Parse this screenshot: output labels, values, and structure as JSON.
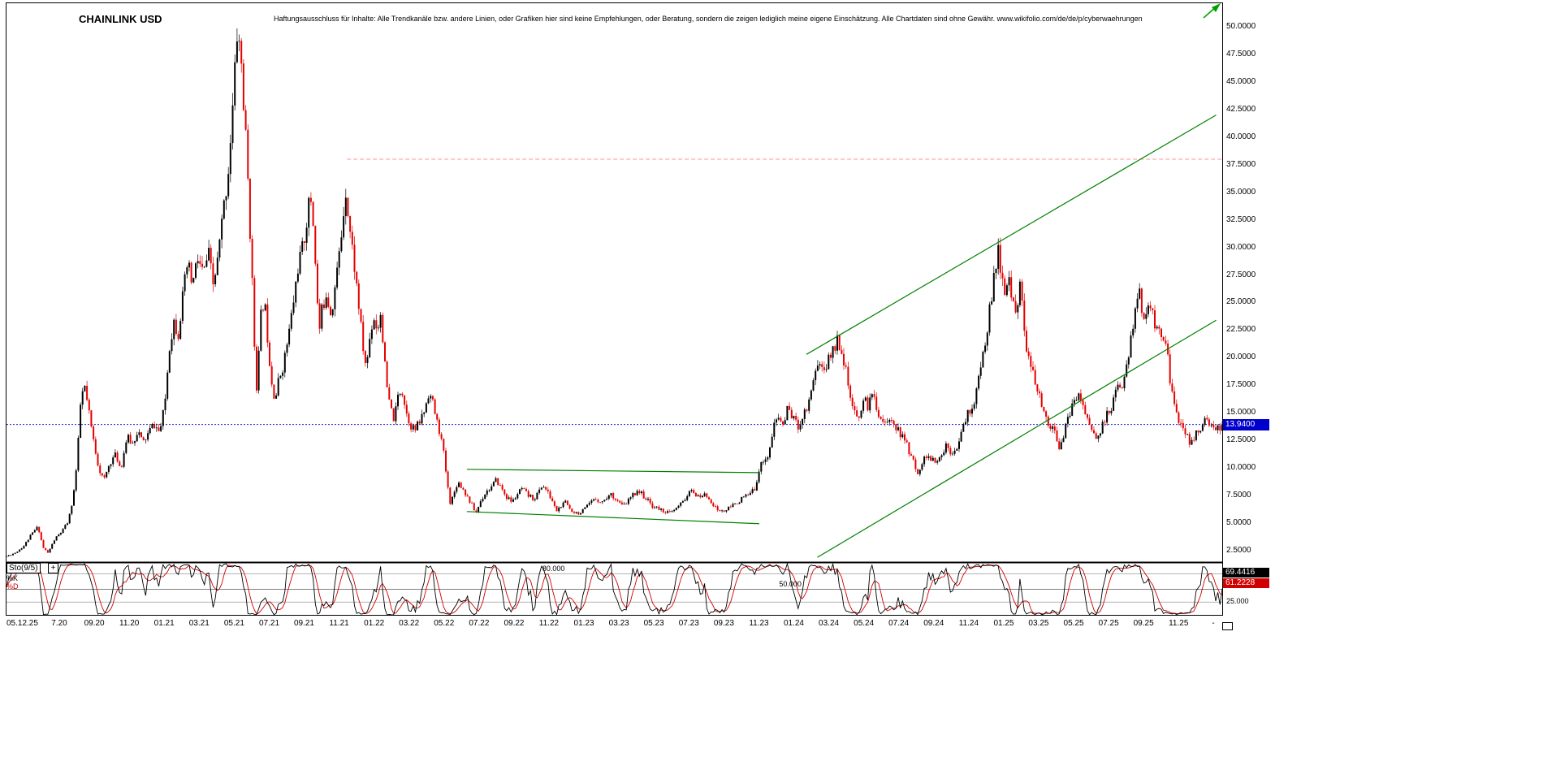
{
  "header": {
    "title": "CHAINLINK USD",
    "disclaimer": "Haftungsausschluss für Inhalte: Alle Trendkanäle bzw. andere Linien, oder Grafiken hier sind keine Empfehlungen, oder Beratung, sondern die zeigen lediglich meine eigene Einschätzung. Alle Chartdaten sind ohne Gewähr. www.wikifolio.com/de/de/p/cyberwaehrungen"
  },
  "price_axis": {
    "labels": [
      "50.0000",
      "47.5000",
      "45.0000",
      "42.5000",
      "40.0000",
      "37.5000",
      "35.0000",
      "32.5000",
      "30.0000",
      "27.5000",
      "25.0000",
      "22.5000",
      "20.0000",
      "17.5000",
      "15.0000",
      "12.5000",
      "10.0000",
      "7.5000",
      "5.0000",
      "2.5000"
    ],
    "current_price": 13.94,
    "current_price_tag": "13.9400",
    "tag_color": "#0000cd"
  },
  "time_axis": {
    "labels": [
      {
        "text": "05.12.25",
        "t": 0,
        "align": "left"
      },
      {
        "text": "7.20",
        "t": 0.0434
      },
      {
        "text": "09.20",
        "t": 0.0722
      },
      {
        "text": "11.20",
        "t": 0.101
      },
      {
        "text": "01.21",
        "t": 0.1297
      },
      {
        "text": "03.21",
        "t": 0.1585
      },
      {
        "text": "05.21",
        "t": 0.1873
      },
      {
        "text": "07.21",
        "t": 0.2161
      },
      {
        "text": "09.21",
        "t": 0.2448
      },
      {
        "text": "11.21",
        "t": 0.2736
      },
      {
        "text": "01.22",
        "t": 0.3024
      },
      {
        "text": "03.22",
        "t": 0.3311
      },
      {
        "text": "05.22",
        "t": 0.3599
      },
      {
        "text": "07.22",
        "t": 0.3887
      },
      {
        "text": "09.22",
        "t": 0.4175
      },
      {
        "text": "11.22",
        "t": 0.4462
      },
      {
        "text": "01.23",
        "t": 0.475
      },
      {
        "text": "03.23",
        "t": 0.5038
      },
      {
        "text": "05.23",
        "t": 0.5325
      },
      {
        "text": "07.23",
        "t": 0.5613
      },
      {
        "text": "09.23",
        "t": 0.5901
      },
      {
        "text": "11.23",
        "t": 0.6189
      },
      {
        "text": "01.24",
        "t": 0.6476
      },
      {
        "text": "03.24",
        "t": 0.6764
      },
      {
        "text": "05.24",
        "t": 0.7052
      },
      {
        "text": "07.24",
        "t": 0.7339
      },
      {
        "text": "09.24",
        "t": 0.7627
      },
      {
        "text": "11.24",
        "t": 0.7915
      },
      {
        "text": "01.25",
        "t": 0.8203
      },
      {
        "text": "03.25",
        "t": 0.849
      },
      {
        "text": "05.25",
        "t": 0.8778
      },
      {
        "text": "07.25",
        "t": 0.9066
      },
      {
        "text": "09.25",
        "t": 0.9353
      },
      {
        "text": "11.25",
        "t": 0.9641
      },
      {
        "text": "-",
        "t": 0.9927
      }
    ]
  },
  "overlays": {
    "resistance_line": {
      "price": 38.0,
      "t_start": 0.28,
      "t_end": 1,
      "color": "#ff9696",
      "dash": "5 3"
    },
    "current_price_line": {
      "price": 13.94,
      "color": "#2020cc",
      "dash": "2 2"
    },
    "consolidation_channel": {
      "color": "#008000",
      "upper": {
        "t1": 0.3787,
        "p1": 9.88,
        "t2": 0.6192,
        "p2": 9.58
      },
      "lower": {
        "t1": 0.3787,
        "p1": 6.05,
        "t2": 0.6192,
        "p2": 4.95
      }
    },
    "ascending_channel": {
      "color": "#008000",
      "upper": {
        "t1": 0.658,
        "p1": 20.3,
        "t2": 0.995,
        "p2": 42.0
      },
      "lower": {
        "t1": 0.667,
        "p1": 1.9,
        "t2": 0.995,
        "p2": 23.4
      }
    },
    "trend_arrow": {
      "color": "#00a000"
    }
  },
  "indicator": {
    "name": "Sto(9/5)",
    "add_button": "+",
    "k_label": "%K",
    "d_label": "%D",
    "k_value": "69.4416",
    "d_value": "61.2228",
    "k_color": "#000000",
    "d_color": "#d00000",
    "period_k": 9,
    "period_d": 5,
    "levels": [
      {
        "value": 80,
        "label": "80.000",
        "t": 0.45
      },
      {
        "value": 50,
        "label": "50.000",
        "t": 0.6447
      },
      {
        "value": 25,
        "label": "25.000",
        "right": true
      }
    ]
  },
  "chart_data": {
    "type": "candlestick",
    "title": "CHAINLINK USD",
    "price_axis_range": [
      2.5,
      50
    ],
    "price_axis_step": 2.5,
    "plot_price_range": [
      1.47,
      52.135
    ],
    "grid": false,
    "candle_count": 560,
    "noise": 0.03,
    "up_color": "#000000",
    "down_color": "#e60000",
    "price_path": [
      [
        0,
        2.0
      ],
      [
        0.007,
        2.3
      ],
      [
        0.014,
        2.9
      ],
      [
        0.02,
        3.9
      ],
      [
        0.026,
        4.7
      ],
      [
        0.03,
        2.8
      ],
      [
        0.034,
        2.3
      ],
      [
        0.04,
        3.6
      ],
      [
        0.046,
        4.3
      ],
      [
        0.051,
        5.2
      ],
      [
        0.055,
        7.5
      ],
      [
        0.058,
        10.5
      ],
      [
        0.061,
        16.0
      ],
      [
        0.064,
        17.5
      ],
      [
        0.067,
        15.5
      ],
      [
        0.071,
        12.8
      ],
      [
        0.076,
        10.0
      ],
      [
        0.08,
        8.8
      ],
      [
        0.085,
        10.5
      ],
      [
        0.09,
        11.2
      ],
      [
        0.094,
        9.9
      ],
      [
        0.099,
        12.8
      ],
      [
        0.104,
        12.2
      ],
      [
        0.108,
        13.5
      ],
      [
        0.112,
        12.2
      ],
      [
        0.116,
        13.0
      ],
      [
        0.121,
        14.0
      ],
      [
        0.126,
        13.2
      ],
      [
        0.13,
        15.5
      ],
      [
        0.134,
        21.0
      ],
      [
        0.138,
        23.5
      ],
      [
        0.141,
        22.0
      ],
      [
        0.145,
        25.5
      ],
      [
        0.149,
        28.5
      ],
      [
        0.153,
        26.5
      ],
      [
        0.157,
        29.0
      ],
      [
        0.162,
        27.5
      ],
      [
        0.166,
        29.5
      ],
      [
        0.17,
        26.5
      ],
      [
        0.174,
        29.0
      ],
      [
        0.178,
        33.0
      ],
      [
        0.182,
        36.5
      ],
      [
        0.186,
        42.5
      ],
      [
        0.19,
        50.0
      ],
      [
        0.193,
        47.0
      ],
      [
        0.195,
        43.0
      ],
      [
        0.198,
        37.5
      ],
      [
        0.201,
        30.0
      ],
      [
        0.204,
        21.0
      ],
      [
        0.206,
        17.0
      ],
      [
        0.209,
        23.5
      ],
      [
        0.212,
        25.5
      ],
      [
        0.215,
        21.5
      ],
      [
        0.218,
        18.0
      ],
      [
        0.221,
        16.2
      ],
      [
        0.224,
        18.0
      ],
      [
        0.228,
        19.5
      ],
      [
        0.232,
        22.0
      ],
      [
        0.236,
        25.0
      ],
      [
        0.24,
        28.5
      ],
      [
        0.244,
        30.0
      ],
      [
        0.248,
        33.5
      ],
      [
        0.251,
        34.5
      ],
      [
        0.254,
        29.0
      ],
      [
        0.257,
        22.0
      ],
      [
        0.259,
        24.0
      ],
      [
        0.263,
        26.0
      ],
      [
        0.267,
        24.0
      ],
      [
        0.271,
        27.0
      ],
      [
        0.275,
        30.5
      ],
      [
        0.279,
        35.5
      ],
      [
        0.282,
        32.0
      ],
      [
        0.286,
        28.5
      ],
      [
        0.29,
        24.5
      ],
      [
        0.293,
        21.0
      ],
      [
        0.296,
        19.0
      ],
      [
        0.299,
        22.0
      ],
      [
        0.302,
        23.8
      ],
      [
        0.305,
        22.5
      ],
      [
        0.308,
        24.2
      ],
      [
        0.312,
        18.0
      ],
      [
        0.315,
        15.8
      ],
      [
        0.319,
        14.3
      ],
      [
        0.322,
        16.5
      ],
      [
        0.325,
        17.3
      ],
      [
        0.329,
        15.0
      ],
      [
        0.332,
        14.0
      ],
      [
        0.336,
        13.4
      ],
      [
        0.34,
        14.2
      ],
      [
        0.344,
        15.3
      ],
      [
        0.347,
        16.8
      ],
      [
        0.35,
        16.2
      ],
      [
        0.354,
        14.2
      ],
      [
        0.357,
        13.0
      ],
      [
        0.36,
        11.0
      ],
      [
        0.363,
        8.2
      ],
      [
        0.365,
        6.9
      ],
      [
        0.368,
        7.6
      ],
      [
        0.371,
        8.8
      ],
      [
        0.375,
        8.2
      ],
      [
        0.379,
        7.4
      ],
      [
        0.383,
        6.6
      ],
      [
        0.386,
        5.9
      ],
      [
        0.39,
        7.0
      ],
      [
        0.394,
        7.8
      ],
      [
        0.399,
        8.3
      ],
      [
        0.403,
        8.9
      ],
      [
        0.407,
        8.2
      ],
      [
        0.411,
        7.4
      ],
      [
        0.416,
        6.9
      ],
      [
        0.42,
        7.6
      ],
      [
        0.424,
        8.1
      ],
      [
        0.429,
        7.5
      ],
      [
        0.434,
        7.2
      ],
      [
        0.438,
        7.9
      ],
      [
        0.441,
        8.5
      ],
      [
        0.445,
        7.8
      ],
      [
        0.449,
        7.0
      ],
      [
        0.452,
        6.1
      ],
      [
        0.456,
        6.5
      ],
      [
        0.46,
        6.9
      ],
      [
        0.464,
        6.2
      ],
      [
        0.468,
        6.0
      ],
      [
        0.472,
        5.9
      ],
      [
        0.477,
        6.4
      ],
      [
        0.481,
        6.9
      ],
      [
        0.485,
        7.2
      ],
      [
        0.49,
        6.9
      ],
      [
        0.494,
        7.4
      ],
      [
        0.498,
        7.6
      ],
      [
        0.502,
        7.1
      ],
      [
        0.507,
        6.5
      ],
      [
        0.511,
        7.0
      ],
      [
        0.515,
        7.5
      ],
      [
        0.519,
        8.0
      ],
      [
        0.523,
        7.6
      ],
      [
        0.527,
        7.1
      ],
      [
        0.531,
        6.6
      ],
      [
        0.536,
        6.3
      ],
      [
        0.541,
        6.1
      ],
      [
        0.546,
        5.9
      ],
      [
        0.551,
        6.3
      ],
      [
        0.556,
        6.9
      ],
      [
        0.561,
        7.7
      ],
      [
        0.565,
        7.9
      ],
      [
        0.569,
        7.3
      ],
      [
        0.573,
        7.6
      ],
      [
        0.578,
        7.3
      ],
      [
        0.582,
        6.5
      ],
      [
        0.586,
        6.1
      ],
      [
        0.591,
        6.1
      ],
      [
        0.596,
        6.5
      ],
      [
        0.601,
        6.9
      ],
      [
        0.606,
        7.3
      ],
      [
        0.611,
        7.6
      ],
      [
        0.615,
        8.0
      ],
      [
        0.619,
        9.8
      ],
      [
        0.623,
        10.9
      ],
      [
        0.627,
        11.1
      ],
      [
        0.631,
        13.8
      ],
      [
        0.635,
        14.6
      ],
      [
        0.639,
        13.9
      ],
      [
        0.643,
        15.6
      ],
      [
        0.647,
        14.6
      ],
      [
        0.651,
        13.7
      ],
      [
        0.655,
        14.8
      ],
      [
        0.659,
        15.6
      ],
      [
        0.663,
        17.8
      ],
      [
        0.667,
        19.6
      ],
      [
        0.671,
        19.0
      ],
      [
        0.675,
        19.4
      ],
      [
        0.679,
        20.6
      ],
      [
        0.684,
        21.7
      ],
      [
        0.688,
        20.4
      ],
      [
        0.692,
        17.6
      ],
      [
        0.696,
        15.2
      ],
      [
        0.7,
        14.4
      ],
      [
        0.705,
        16.2
      ],
      [
        0.709,
        15.6
      ],
      [
        0.713,
        16.9
      ],
      [
        0.717,
        15.0
      ],
      [
        0.721,
        14.3
      ],
      [
        0.725,
        13.9
      ],
      [
        0.729,
        14.6
      ],
      [
        0.733,
        13.4
      ],
      [
        0.737,
        12.8
      ],
      [
        0.741,
        12.0
      ],
      [
        0.745,
        10.8
      ],
      [
        0.749,
        9.6
      ],
      [
        0.753,
        10.4
      ],
      [
        0.757,
        11.2
      ],
      [
        0.761,
        10.7
      ],
      [
        0.765,
        10.4
      ],
      [
        0.769,
        11.1
      ],
      [
        0.773,
        12.1
      ],
      [
        0.777,
        11.5
      ],
      [
        0.781,
        11.9
      ],
      [
        0.785,
        12.8
      ],
      [
        0.789,
        14.6
      ],
      [
        0.793,
        15.2
      ],
      [
        0.797,
        16.4
      ],
      [
        0.801,
        18.8
      ],
      [
        0.805,
        21.5
      ],
      [
        0.809,
        24.6
      ],
      [
        0.813,
        27.5
      ],
      [
        0.816,
        29.6
      ],
      [
        0.818,
        28.0
      ],
      [
        0.821,
        25.6
      ],
      [
        0.824,
        26.9
      ],
      [
        0.828,
        25.3
      ],
      [
        0.831,
        24.6
      ],
      [
        0.834,
        26.4
      ],
      [
        0.837,
        23.2
      ],
      [
        0.84,
        20.0
      ],
      [
        0.844,
        18.6
      ],
      [
        0.847,
        17.0
      ],
      [
        0.851,
        16.0
      ],
      [
        0.855,
        14.6
      ],
      [
        0.859,
        13.8
      ],
      [
        0.863,
        12.9
      ],
      [
        0.866,
        11.9
      ],
      [
        0.87,
        13.2
      ],
      [
        0.874,
        14.7
      ],
      [
        0.878,
        15.9
      ],
      [
        0.882,
        16.9
      ],
      [
        0.885,
        15.8
      ],
      [
        0.889,
        14.6
      ],
      [
        0.893,
        13.2
      ],
      [
        0.897,
        12.5
      ],
      [
        0.901,
        13.6
      ],
      [
        0.905,
        14.8
      ],
      [
        0.909,
        15.4
      ],
      [
        0.913,
        17.4
      ],
      [
        0.917,
        16.6
      ],
      [
        0.921,
        18.9
      ],
      [
        0.925,
        21.8
      ],
      [
        0.929,
        24.9
      ],
      [
        0.932,
        25.9
      ],
      [
        0.935,
        23.6
      ],
      [
        0.938,
        24.9
      ],
      [
        0.941,
        23.9
      ],
      [
        0.945,
        23.2
      ],
      [
        0.949,
        22.3
      ],
      [
        0.952,
        21.6
      ],
      [
        0.955,
        20.8
      ],
      [
        0.958,
        17.0
      ],
      [
        0.961,
        15.2
      ],
      [
        0.965,
        14.3
      ],
      [
        0.969,
        13.5
      ],
      [
        0.973,
        12.3
      ],
      [
        0.977,
        12.8
      ],
      [
        0.981,
        13.4
      ],
      [
        0.985,
        14.5
      ],
      [
        0.989,
        13.8
      ],
      [
        0.993,
        13.3
      ],
      [
        1,
        13.94
      ]
    ]
  }
}
